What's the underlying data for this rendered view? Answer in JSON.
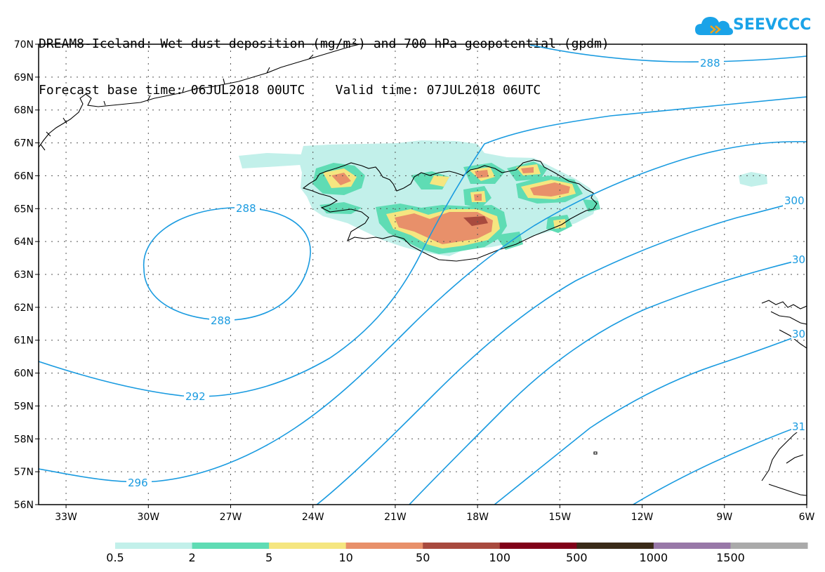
{
  "title": {
    "line1": "DREAM8-Iceland: Wet dust deposition (mg/m²) and 700 hPa geopotential (gpdm)",
    "line2": "Forecast base time: 06JUL2018 00UTC    Valid time: 07JUL2018 06UTC"
  },
  "logo": {
    "text": "SEEVCCC",
    "icon": "cloud-icon",
    "color": "#1aa3e8"
  },
  "map": {
    "lat_labels": [
      "70N",
      "69N",
      "68N",
      "67N",
      "66N",
      "65N",
      "64N",
      "63N",
      "62N",
      "61N",
      "60N",
      "59N",
      "58N",
      "57N",
      "56N"
    ],
    "lon_labels": [
      "33W",
      "30W",
      "27W",
      "24W",
      "21W",
      "18W",
      "15W",
      "12W",
      "9W",
      "6W"
    ],
    "lat_range": [
      56,
      70
    ],
    "lon_range": [
      -34,
      -6
    ],
    "contour_color": "#1a9be0",
    "contour_labels": [
      "288",
      "288",
      "288",
      "292",
      "296",
      "300",
      "30",
      "30",
      "31"
    ]
  },
  "legend": {
    "colors": [
      "#c2f0ea",
      "#5fdcb4",
      "#f5e680",
      "#e8906a",
      "#a84a3e",
      "#800018",
      "#3a2a18",
      "#9878a8",
      "#aaaaaa"
    ],
    "labels": [
      "0.5",
      "2",
      "5",
      "10",
      "50",
      "100",
      "500",
      "1000",
      "1500"
    ]
  }
}
